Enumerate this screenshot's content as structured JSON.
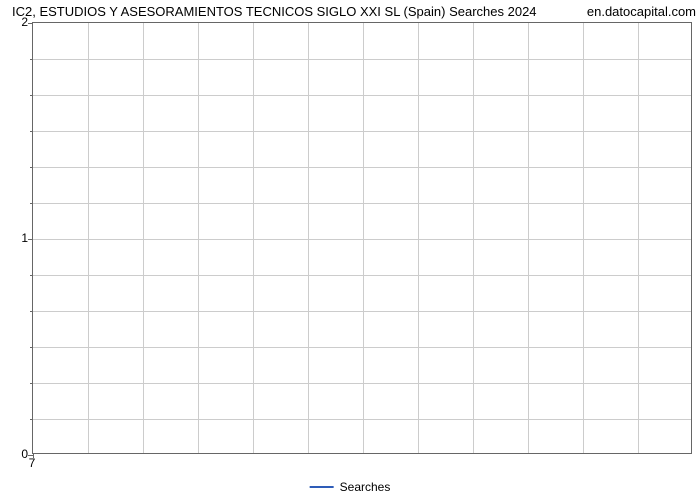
{
  "chart": {
    "type": "line",
    "title": "IC2, ESTUDIOS Y ASESORAMIENTOS TECNICOS SIGLO XXI SL (Spain) Searches 2024",
    "watermark": "en.datocapital.com",
    "title_fontsize": 13,
    "background_color": "#ffffff",
    "border_color": "#666666",
    "grid_color": "#cccccc",
    "text_color": "#000000",
    "x_axis": {
      "ticks": [
        "7"
      ],
      "label_fontsize": 12
    },
    "y_axis": {
      "major_ticks": [
        0,
        1,
        2
      ],
      "minor_tick_count": 12,
      "ylim": [
        0,
        2
      ],
      "label_fontsize": 12
    },
    "grid_columns": 12,
    "grid_rows": 12,
    "series": [
      {
        "name": "Searches",
        "color": "#2e5cb8",
        "line_width": 2,
        "data": []
      }
    ],
    "legend": {
      "position": "bottom-center",
      "items": [
        {
          "label": "Searches",
          "color": "#2e5cb8"
        }
      ]
    }
  }
}
